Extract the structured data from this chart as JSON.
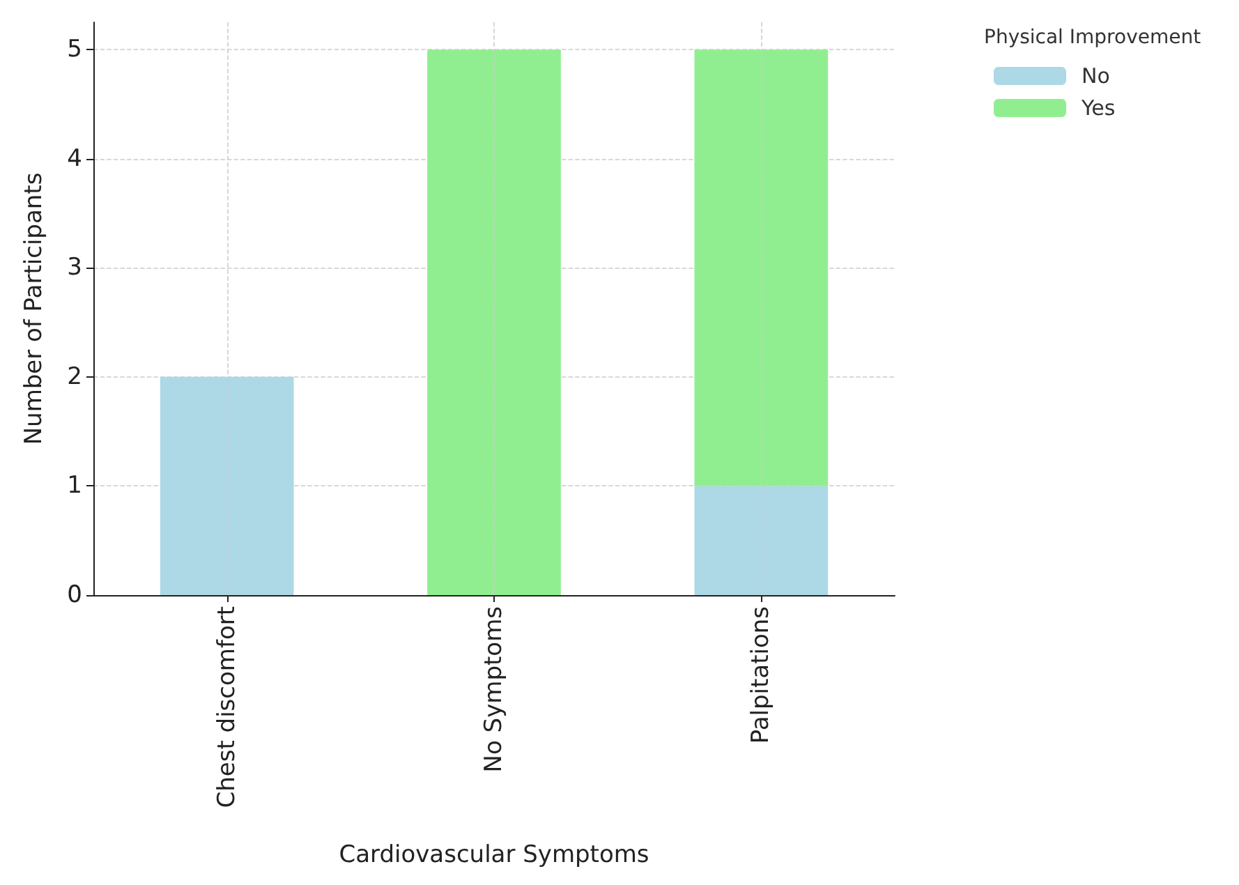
{
  "chart_data": {
    "type": "bar",
    "stacked": true,
    "xlabel": "Cardiovascular Symptoms",
    "ylabel": "Number of Participants",
    "legend_title": "Physical Improvement",
    "categories": [
      "Chest discomfort",
      "No Symptoms",
      "Palpitations"
    ],
    "series": [
      {
        "name": "No",
        "color": "#add8e6",
        "values": [
          2,
          0,
          1
        ]
      },
      {
        "name": "Yes",
        "color": "#90ee90",
        "values": [
          0,
          5,
          4
        ]
      }
    ],
    "ylim": [
      0,
      5.25
    ],
    "yticks": [
      0,
      1,
      2,
      3,
      4,
      5
    ],
    "grid": true,
    "legend": "top right"
  }
}
